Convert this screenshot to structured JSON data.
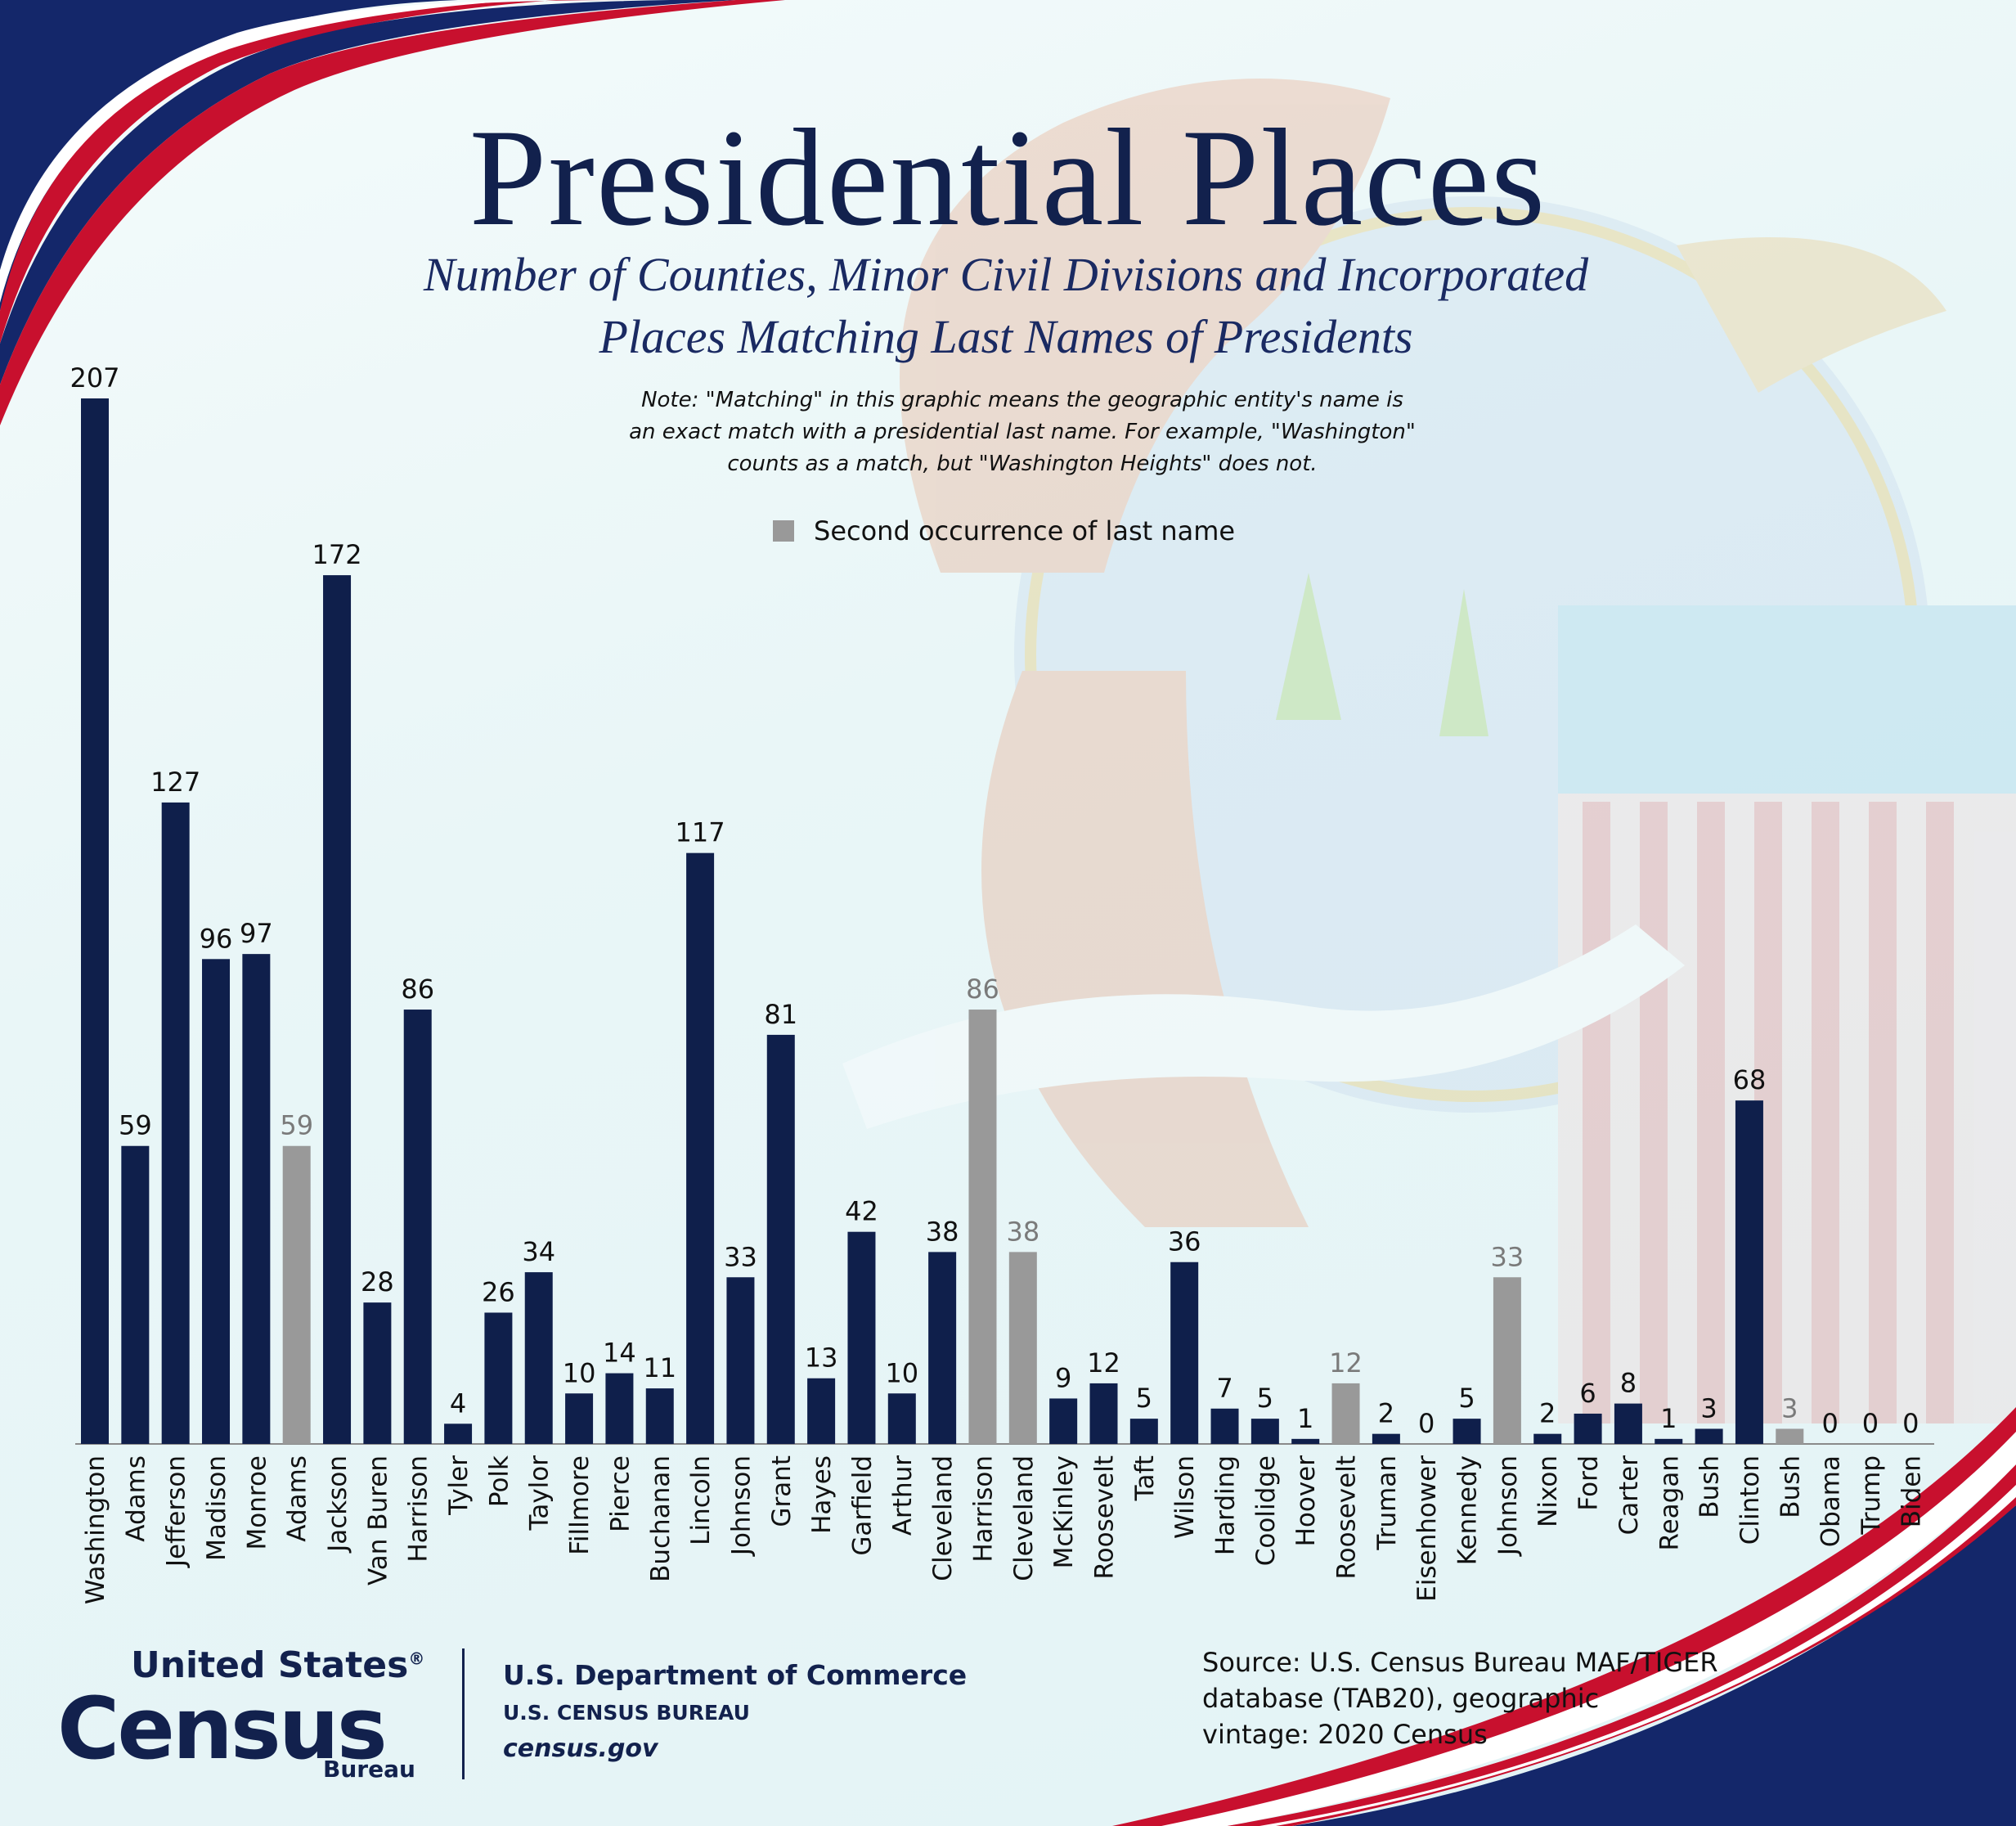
{
  "header": {
    "title": "Presidential Places",
    "subtitle_line1": "Number of  Counties, Minor Civil Divisions and Incorporated",
    "subtitle_line2": "Places Matching Last Names of  Presidents",
    "note_line1": "Note: \"Matching\" in this graphic means the geographic entity's name is",
    "note_line2": "an exact match with a presidential last name. For example, \"Washington\"",
    "note_line3": "counts as a match, but \"Washington Heights\" does not."
  },
  "legend": {
    "label": "Second occurrence of last name"
  },
  "colors": {
    "primary": "#0f1f4b",
    "second_occurrence": "#999999"
  },
  "chart_data": {
    "type": "bar",
    "title": "Presidential Places",
    "xlabel": "",
    "ylabel": "",
    "ylim": [
      0,
      207
    ],
    "grid": false,
    "legend_position": "top-center",
    "categories": [
      "Washington",
      "Adams",
      "Jefferson",
      "Madison",
      "Monroe",
      "Adams",
      "Jackson",
      "Van Buren",
      "Harrison",
      "Tyler",
      "Polk",
      "Taylor",
      "Fillmore",
      "Pierce",
      "Buchanan",
      "Lincoln",
      "Johnson",
      "Grant",
      "Hayes",
      "Garfield",
      "Arthur",
      "Cleveland",
      "Harrison",
      "Cleveland",
      "McKinley",
      "Roosevelt",
      "Taft",
      "Wilson",
      "Harding",
      "Coolidge",
      "Hoover",
      "Roosevelt",
      "Truman",
      "Eisenhower",
      "Kennedy",
      "Johnson",
      "Nixon",
      "Ford",
      "Carter",
      "Reagan",
      "Bush",
      "Clinton",
      "Bush",
      "Obama",
      "Trump",
      "Biden"
    ],
    "values": [
      207,
      59,
      127,
      96,
      97,
      59,
      172,
      28,
      86,
      4,
      26,
      34,
      10,
      14,
      11,
      117,
      33,
      81,
      13,
      42,
      10,
      38,
      86,
      38,
      9,
      12,
      5,
      36,
      7,
      5,
      1,
      12,
      2,
      0,
      5,
      33,
      2,
      6,
      8,
      1,
      3,
      68,
      3,
      0,
      0,
      0
    ],
    "second_occurrence": [
      false,
      false,
      false,
      false,
      false,
      true,
      false,
      false,
      false,
      false,
      false,
      false,
      false,
      false,
      false,
      false,
      false,
      false,
      false,
      false,
      false,
      false,
      true,
      true,
      false,
      false,
      false,
      false,
      false,
      false,
      false,
      true,
      false,
      false,
      false,
      true,
      false,
      false,
      false,
      false,
      false,
      false,
      true,
      false,
      false,
      false
    ],
    "series": [
      {
        "name": "Second occurrence of last name"
      }
    ]
  },
  "footer": {
    "logo_line1": "United States",
    "logo_reg": "®",
    "logo_line2": "Census",
    "logo_line3": "Bureau",
    "dept_line1": "U.S. Department of Commerce",
    "dept_line2": "U.S. CENSUS BUREAU",
    "dept_line3": "census.gov",
    "source_line1": "Source: U.S. Census Bureau MAF/TIGER",
    "source_line2": "database (TAB20), geographic",
    "source_line3": "vintage: 2020 Census"
  }
}
